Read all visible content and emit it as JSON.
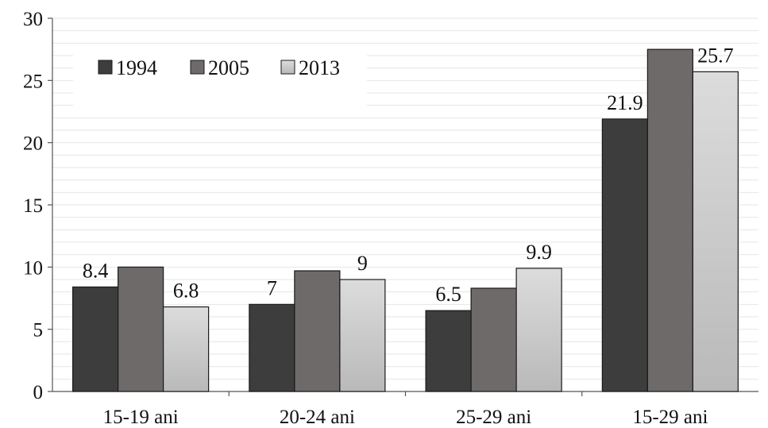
{
  "chart_data": {
    "type": "bar",
    "title": "",
    "xlabel": "",
    "ylabel": "",
    "categories": [
      "15-19 ani",
      "20-24 ani",
      "25-29 ani",
      "15-29 ani"
    ],
    "series": [
      {
        "name": "1994",
        "values": [
          8.4,
          7,
          6.5,
          21.9
        ],
        "color": "#3d3d3d",
        "labels": [
          "8.4",
          "7",
          "6.5",
          "21.9"
        ]
      },
      {
        "name": "2005",
        "values": [
          10,
          9.7,
          8.3,
          27.5
        ],
        "color": "#6e6a6a",
        "labels": [
          "",
          "",
          "",
          ""
        ]
      },
      {
        "name": "2013",
        "values": [
          6.8,
          9,
          9.9,
          25.7
        ],
        "color": "#cfcfcf",
        "labels": [
          "6.8",
          "9",
          "9.9",
          "25.7"
        ]
      }
    ],
    "ylim": [
      0,
      30
    ],
    "yticks": [
      0,
      5,
      10,
      15,
      20,
      25,
      30
    ],
    "grid": true,
    "legend_position": "top-left"
  }
}
